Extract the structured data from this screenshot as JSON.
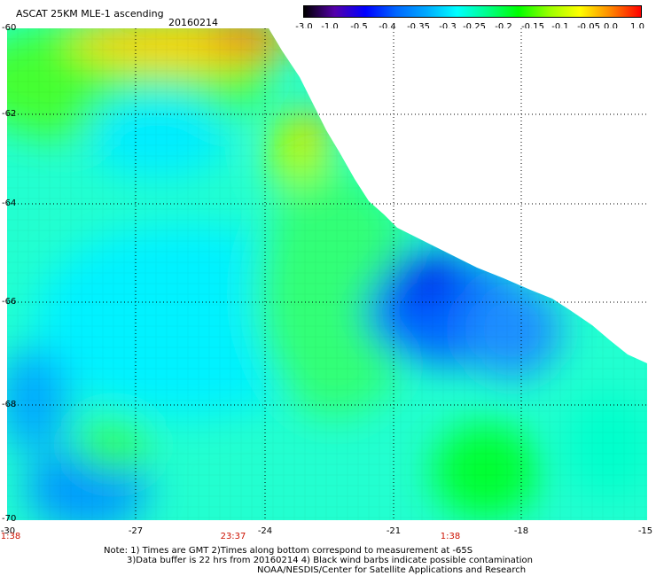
{
  "header": {
    "title": "ASCAT 25KM MLE-1 ascending",
    "date": "20160214"
  },
  "colorbar": {
    "labels": [
      "-3.0",
      "-1.0",
      "-0.5",
      "-0.4",
      "-0.35",
      "-0.3",
      "-0.25",
      "-0.2",
      "-0.15",
      "-0.1",
      "-0.05",
      "0.0",
      "1.0"
    ],
    "colors": [
      "#000000",
      "#5500aa",
      "#0000ff",
      "#0066ff",
      "#00aaff",
      "#00ffff",
      "#00ff88",
      "#00ff00",
      "#99ff00",
      "#ffff00",
      "#ff8800",
      "#ff0000"
    ]
  },
  "axes": {
    "x_ticks": [
      "-30",
      "-27",
      "-24",
      "-21",
      "-18",
      "-15"
    ],
    "y_ticks": [
      "-60",
      "-62",
      "-64",
      "-66",
      "-68",
      "-70"
    ]
  },
  "times": [
    "1:38",
    "23:37",
    "1:38"
  ],
  "notes": {
    "line1": "Note: 1) Times are GMT 2)Times along bottom correspond to measurement at -65S",
    "line2": "3)Data buffer is 22 hrs from 20160214 4) Black wind barbs indicate possible contamination",
    "line3": "NOAA/NESDIS/Center for Satellite Applications and Research"
  }
}
